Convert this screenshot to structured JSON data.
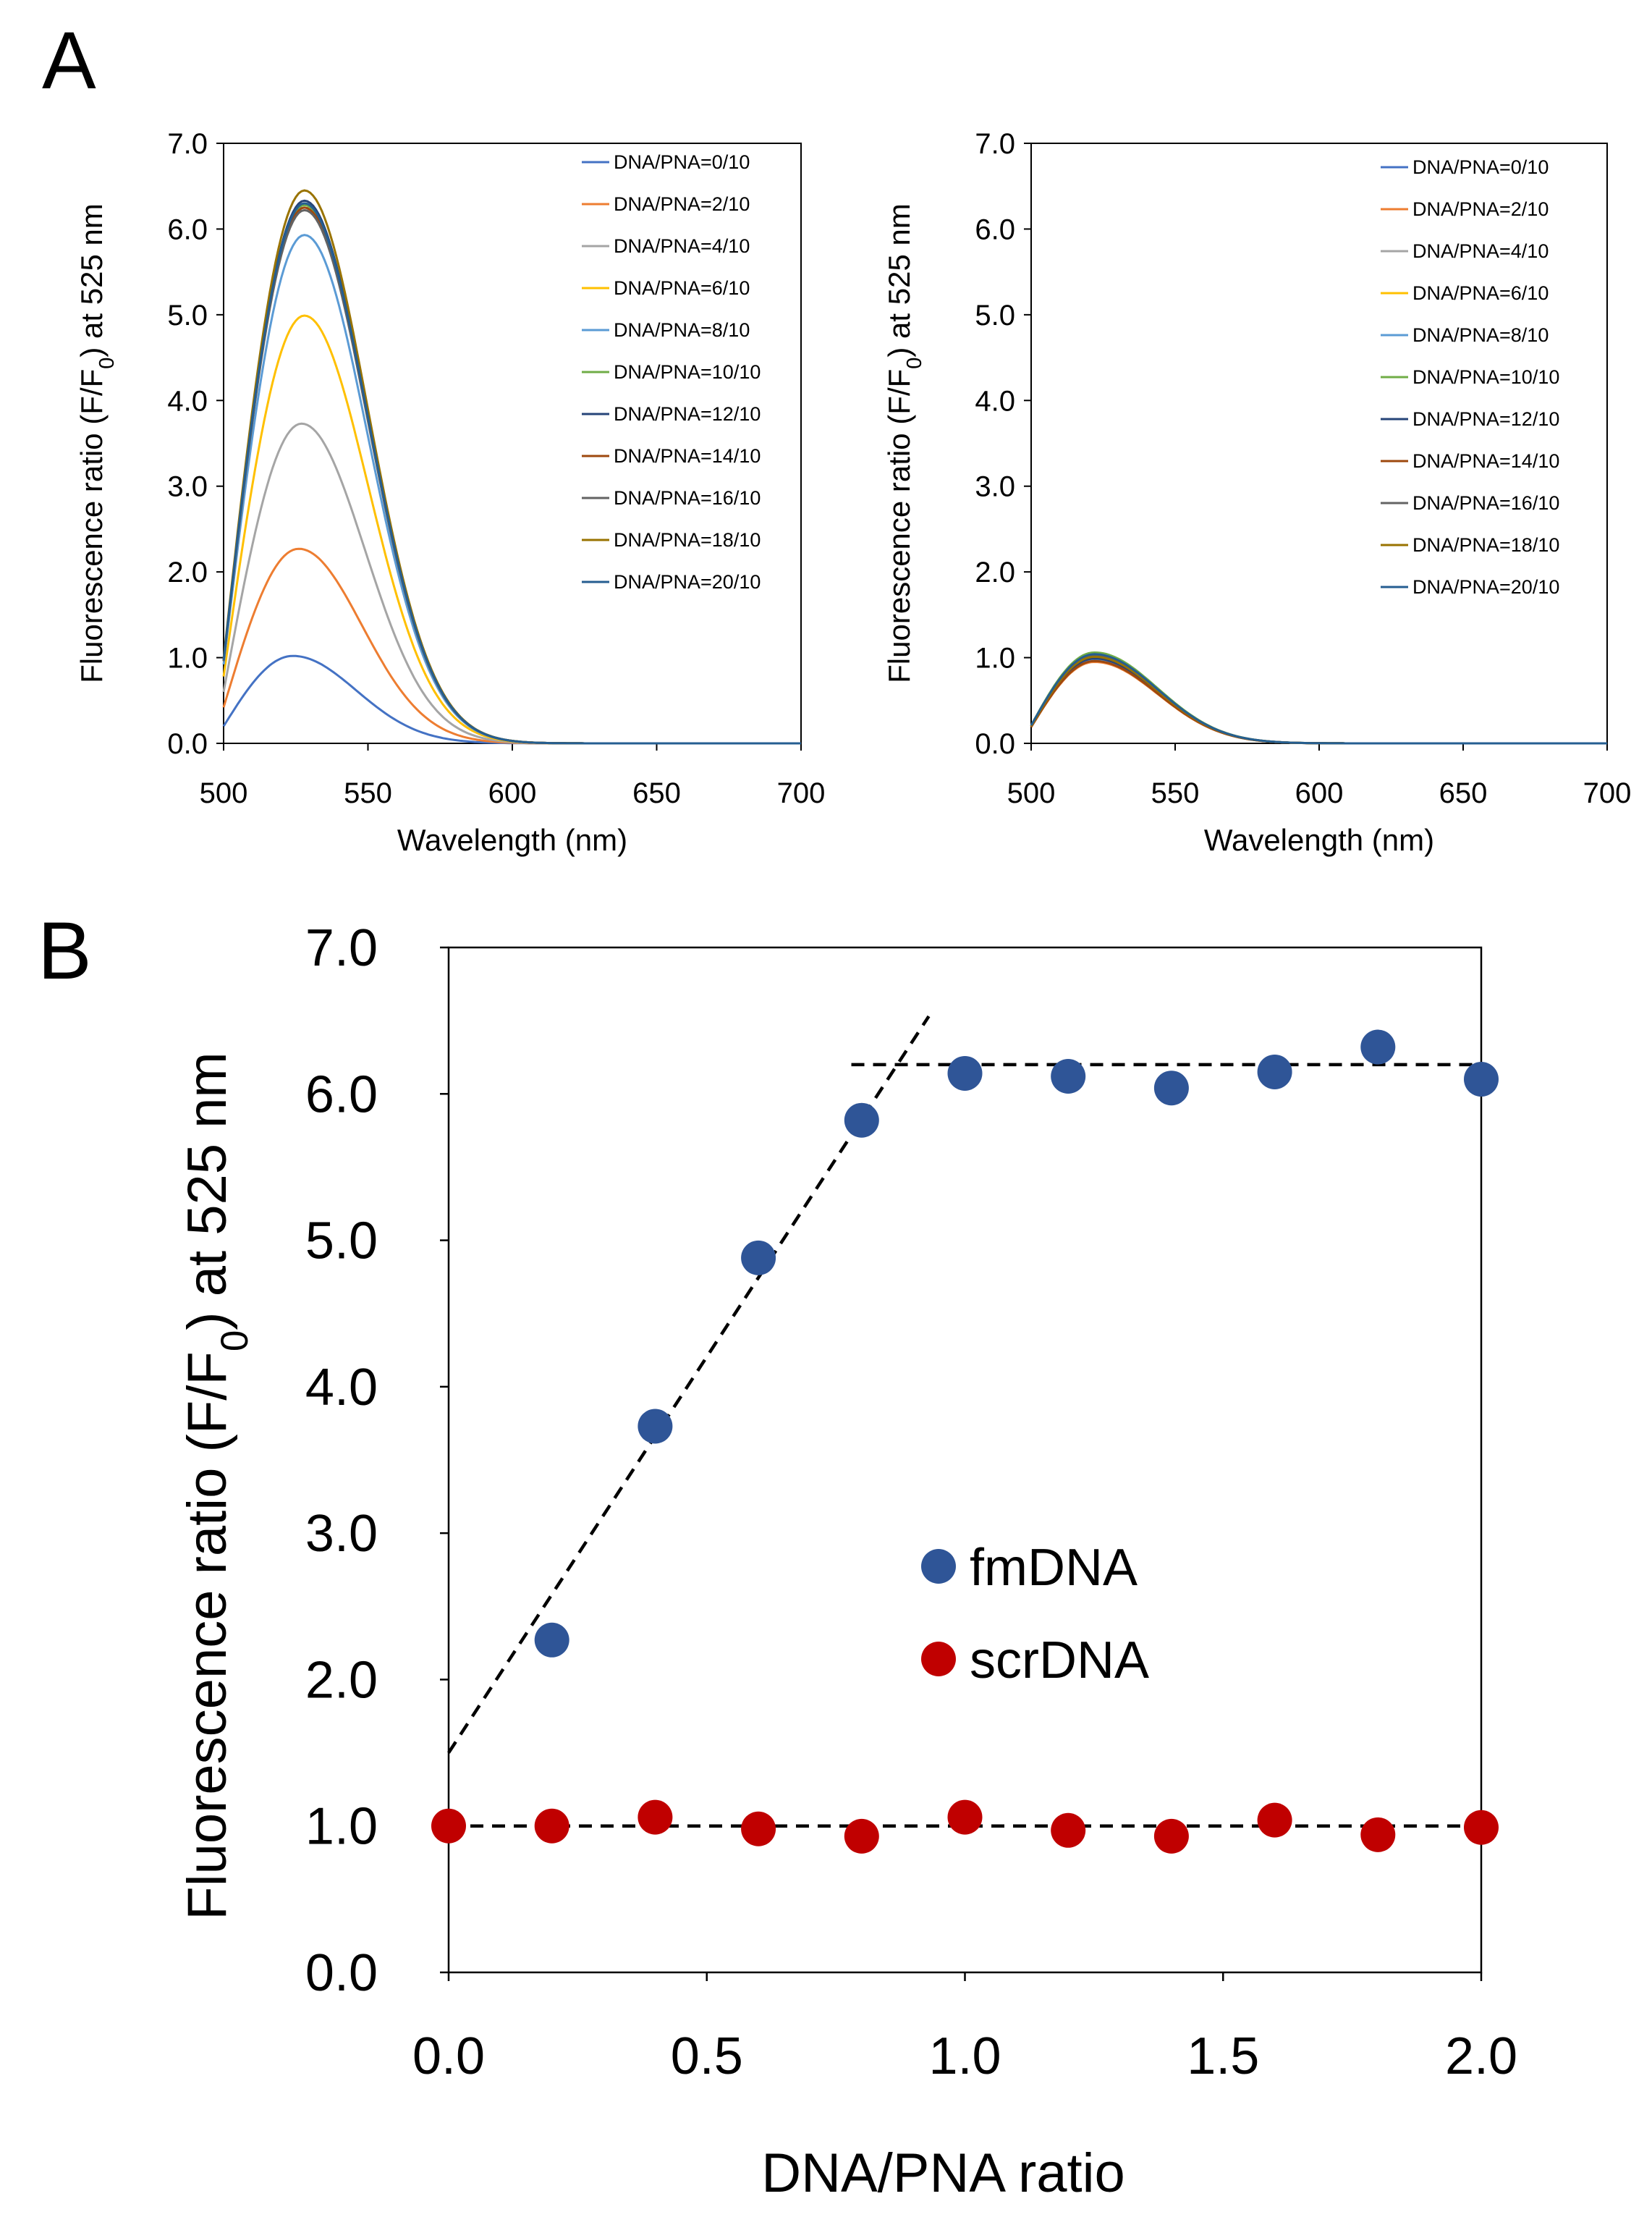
{
  "colors": {
    "series": [
      "#4472C4",
      "#ED7D31",
      "#A5A5A5",
      "#FFC000",
      "#5B9BD5",
      "#70AD47",
      "#264478",
      "#9E480E",
      "#636363",
      "#997300",
      "#255E91"
    ],
    "fmDNA": "#2F5597",
    "scrDNA": "#C00000"
  },
  "panel_labels": {
    "a": "A",
    "b": "B"
  },
  "chart_data": [
    {
      "id": "A-left",
      "type": "line",
      "xlabel": "Wavelength  (nm)",
      "ylabel": "Fluorescence ratio (F/F0) at 525 nm",
      "xlim": [
        500,
        700
      ],
      "ylim": [
        0,
        7
      ],
      "xticks": [
        "500",
        "550",
        "600",
        "650",
        "700"
      ],
      "yticks": [
        "0.0",
        "1.0",
        "2.0",
        "3.0",
        "4.0",
        "5.0",
        "6.0",
        "7.0"
      ],
      "legend": [
        "DNA/PNA=0/10",
        "DNA/PNA=2/10",
        "DNA/PNA=4/10",
        "DNA/PNA=6/10",
        "DNA/PNA=8/10",
        "DNA/PNA=10/10",
        "DNA/PNA=12/10",
        "DNA/PNA=14/10",
        "DNA/PNA=16/10",
        "DNA/PNA=18/10",
        "DNA/PNA=20/10"
      ],
      "peaks": [
        1.02,
        2.27,
        3.73,
        4.99,
        5.93,
        6.28,
        6.33,
        6.25,
        6.22,
        6.45,
        6.3
      ],
      "peak_wavelengths": [
        524,
        526,
        527,
        528,
        528,
        528,
        528,
        528,
        528,
        528,
        528
      ],
      "start_values": [
        0.2,
        0.42,
        0.6,
        0.78,
        0.92,
        0.96,
        0.97,
        0.96,
        0.96,
        0.99,
        0.97
      ]
    },
    {
      "id": "A-right",
      "type": "line",
      "xlabel": "Wavelength  (nm)",
      "ylabel": "Fluorescence ratio (F/F0) at 525 nm",
      "xlim": [
        500,
        700
      ],
      "ylim": [
        0,
        7
      ],
      "xticks": [
        "500",
        "550",
        "600",
        "650",
        "700"
      ],
      "yticks": [
        "0.0",
        "1.0",
        "2.0",
        "3.0",
        "4.0",
        "5.0",
        "6.0",
        "7.0"
      ],
      "legend": [
        "DNA/PNA=0/10",
        "DNA/PNA=2/10",
        "DNA/PNA=4/10",
        "DNA/PNA=6/10",
        "DNA/PNA=8/10",
        "DNA/PNA=10/10",
        "DNA/PNA=12/10",
        "DNA/PNA=14/10",
        "DNA/PNA=16/10",
        "DNA/PNA=18/10",
        "DNA/PNA=20/10"
      ],
      "peaks": [
        1.0,
        0.95,
        1.02,
        0.98,
        0.97,
        1.06,
        0.99,
        0.96,
        1.03,
        1.01,
        1.04
      ],
      "peak_wavelengths": [
        522,
        522,
        522,
        522,
        522,
        522,
        522,
        522,
        522,
        522,
        522
      ],
      "start_values": [
        0.2,
        0.19,
        0.2,
        0.2,
        0.2,
        0.21,
        0.2,
        0.19,
        0.2,
        0.2,
        0.21
      ]
    },
    {
      "id": "B",
      "type": "scatter",
      "xlabel": "DNA/PNA ratio",
      "ylabel": "Fluorescence ratio (F/F0) at 525 nm",
      "xlim": [
        0,
        2
      ],
      "ylim": [
        0,
        7
      ],
      "xticks": [
        "0.0",
        "0.5",
        "1.0",
        "1.5",
        "2.0"
      ],
      "yticks": [
        "0.0",
        "1.0",
        "2.0",
        "3.0",
        "4.0",
        "5.0",
        "6.0",
        "7.0"
      ],
      "series": [
        {
          "name": "fmDNA",
          "x": [
            0.2,
            0.4,
            0.6,
            0.8,
            1.0,
            1.2,
            1.4,
            1.6,
            1.8,
            2.0
          ],
          "y": [
            2.27,
            3.73,
            4.88,
            5.82,
            6.14,
            6.12,
            6.04,
            6.15,
            6.32,
            6.1
          ]
        },
        {
          "name": "scrDNA",
          "x": [
            0.0,
            0.2,
            0.4,
            0.6,
            0.8,
            1.0,
            1.2,
            1.4,
            1.6,
            1.8,
            2.0
          ],
          "y": [
            1.0,
            1.0,
            1.06,
            0.98,
            0.93,
            1.06,
            0.97,
            0.93,
            1.04,
            0.94,
            0.99
          ]
        }
      ],
      "fit_lines": [
        {
          "x": [
            0.0,
            0.93
          ],
          "y": [
            1.5,
            6.53
          ]
        },
        {
          "x": [
            0.78,
            2.0
          ],
          "y": [
            6.2,
            6.2
          ]
        },
        {
          "x": [
            0.0,
            2.0
          ],
          "y": [
            1.0,
            1.0
          ]
        }
      ]
    }
  ]
}
